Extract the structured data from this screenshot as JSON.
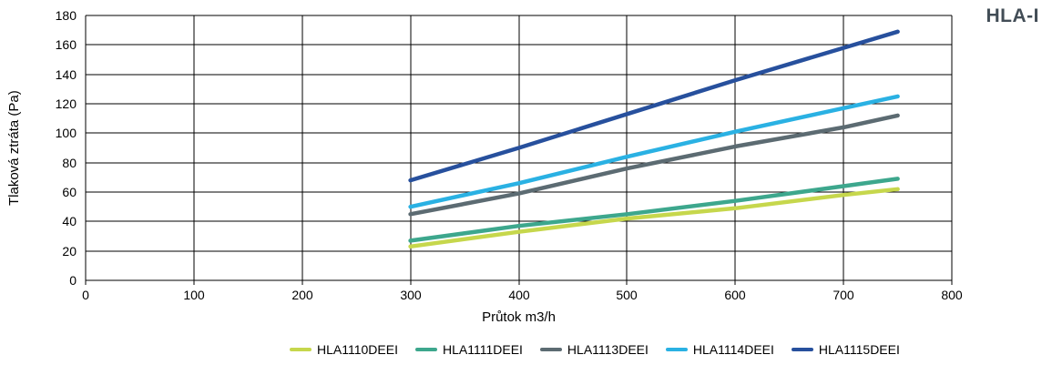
{
  "title": "HLA-I",
  "title_color": "#424d56",
  "chart_data": {
    "type": "line",
    "x": [
      300,
      400,
      500,
      600,
      700,
      750
    ],
    "series": [
      {
        "name": "HLA1110DEEI",
        "color": "#c6d74c",
        "values": [
          23,
          33,
          42,
          49,
          58,
          62
        ]
      },
      {
        "name": "HLA1111DEEI",
        "color": "#3da78d",
        "values": [
          27,
          37,
          45,
          54,
          64,
          69
        ]
      },
      {
        "name": "HLA1113DEEI",
        "color": "#5c6b72",
        "values": [
          45,
          59,
          76,
          91,
          104,
          112
        ]
      },
      {
        "name": "HLA1114DEEI",
        "color": "#2ab1e3",
        "values": [
          50,
          66,
          84,
          101,
          117,
          125
        ]
      },
      {
        "name": "HLA1115DEEI",
        "color": "#27509d",
        "values": [
          68,
          90,
          113,
          136,
          158,
          169
        ]
      }
    ],
    "xlabel": "Průtok m3/h",
    "ylabel": "Tlaková ztráta (Pa)",
    "xlim": [
      0,
      800
    ],
    "ylim": [
      0,
      180
    ],
    "x_tick_step": 100,
    "y_tick_step": 20,
    "x_ticks": [
      0,
      100,
      200,
      300,
      400,
      500,
      600,
      700,
      800
    ],
    "y_ticks": [
      0,
      20,
      40,
      60,
      80,
      100,
      120,
      140,
      160,
      180
    ],
    "grid": true,
    "grid_color": "#000000",
    "legend_position": "bottom",
    "line_width": 4.5
  }
}
